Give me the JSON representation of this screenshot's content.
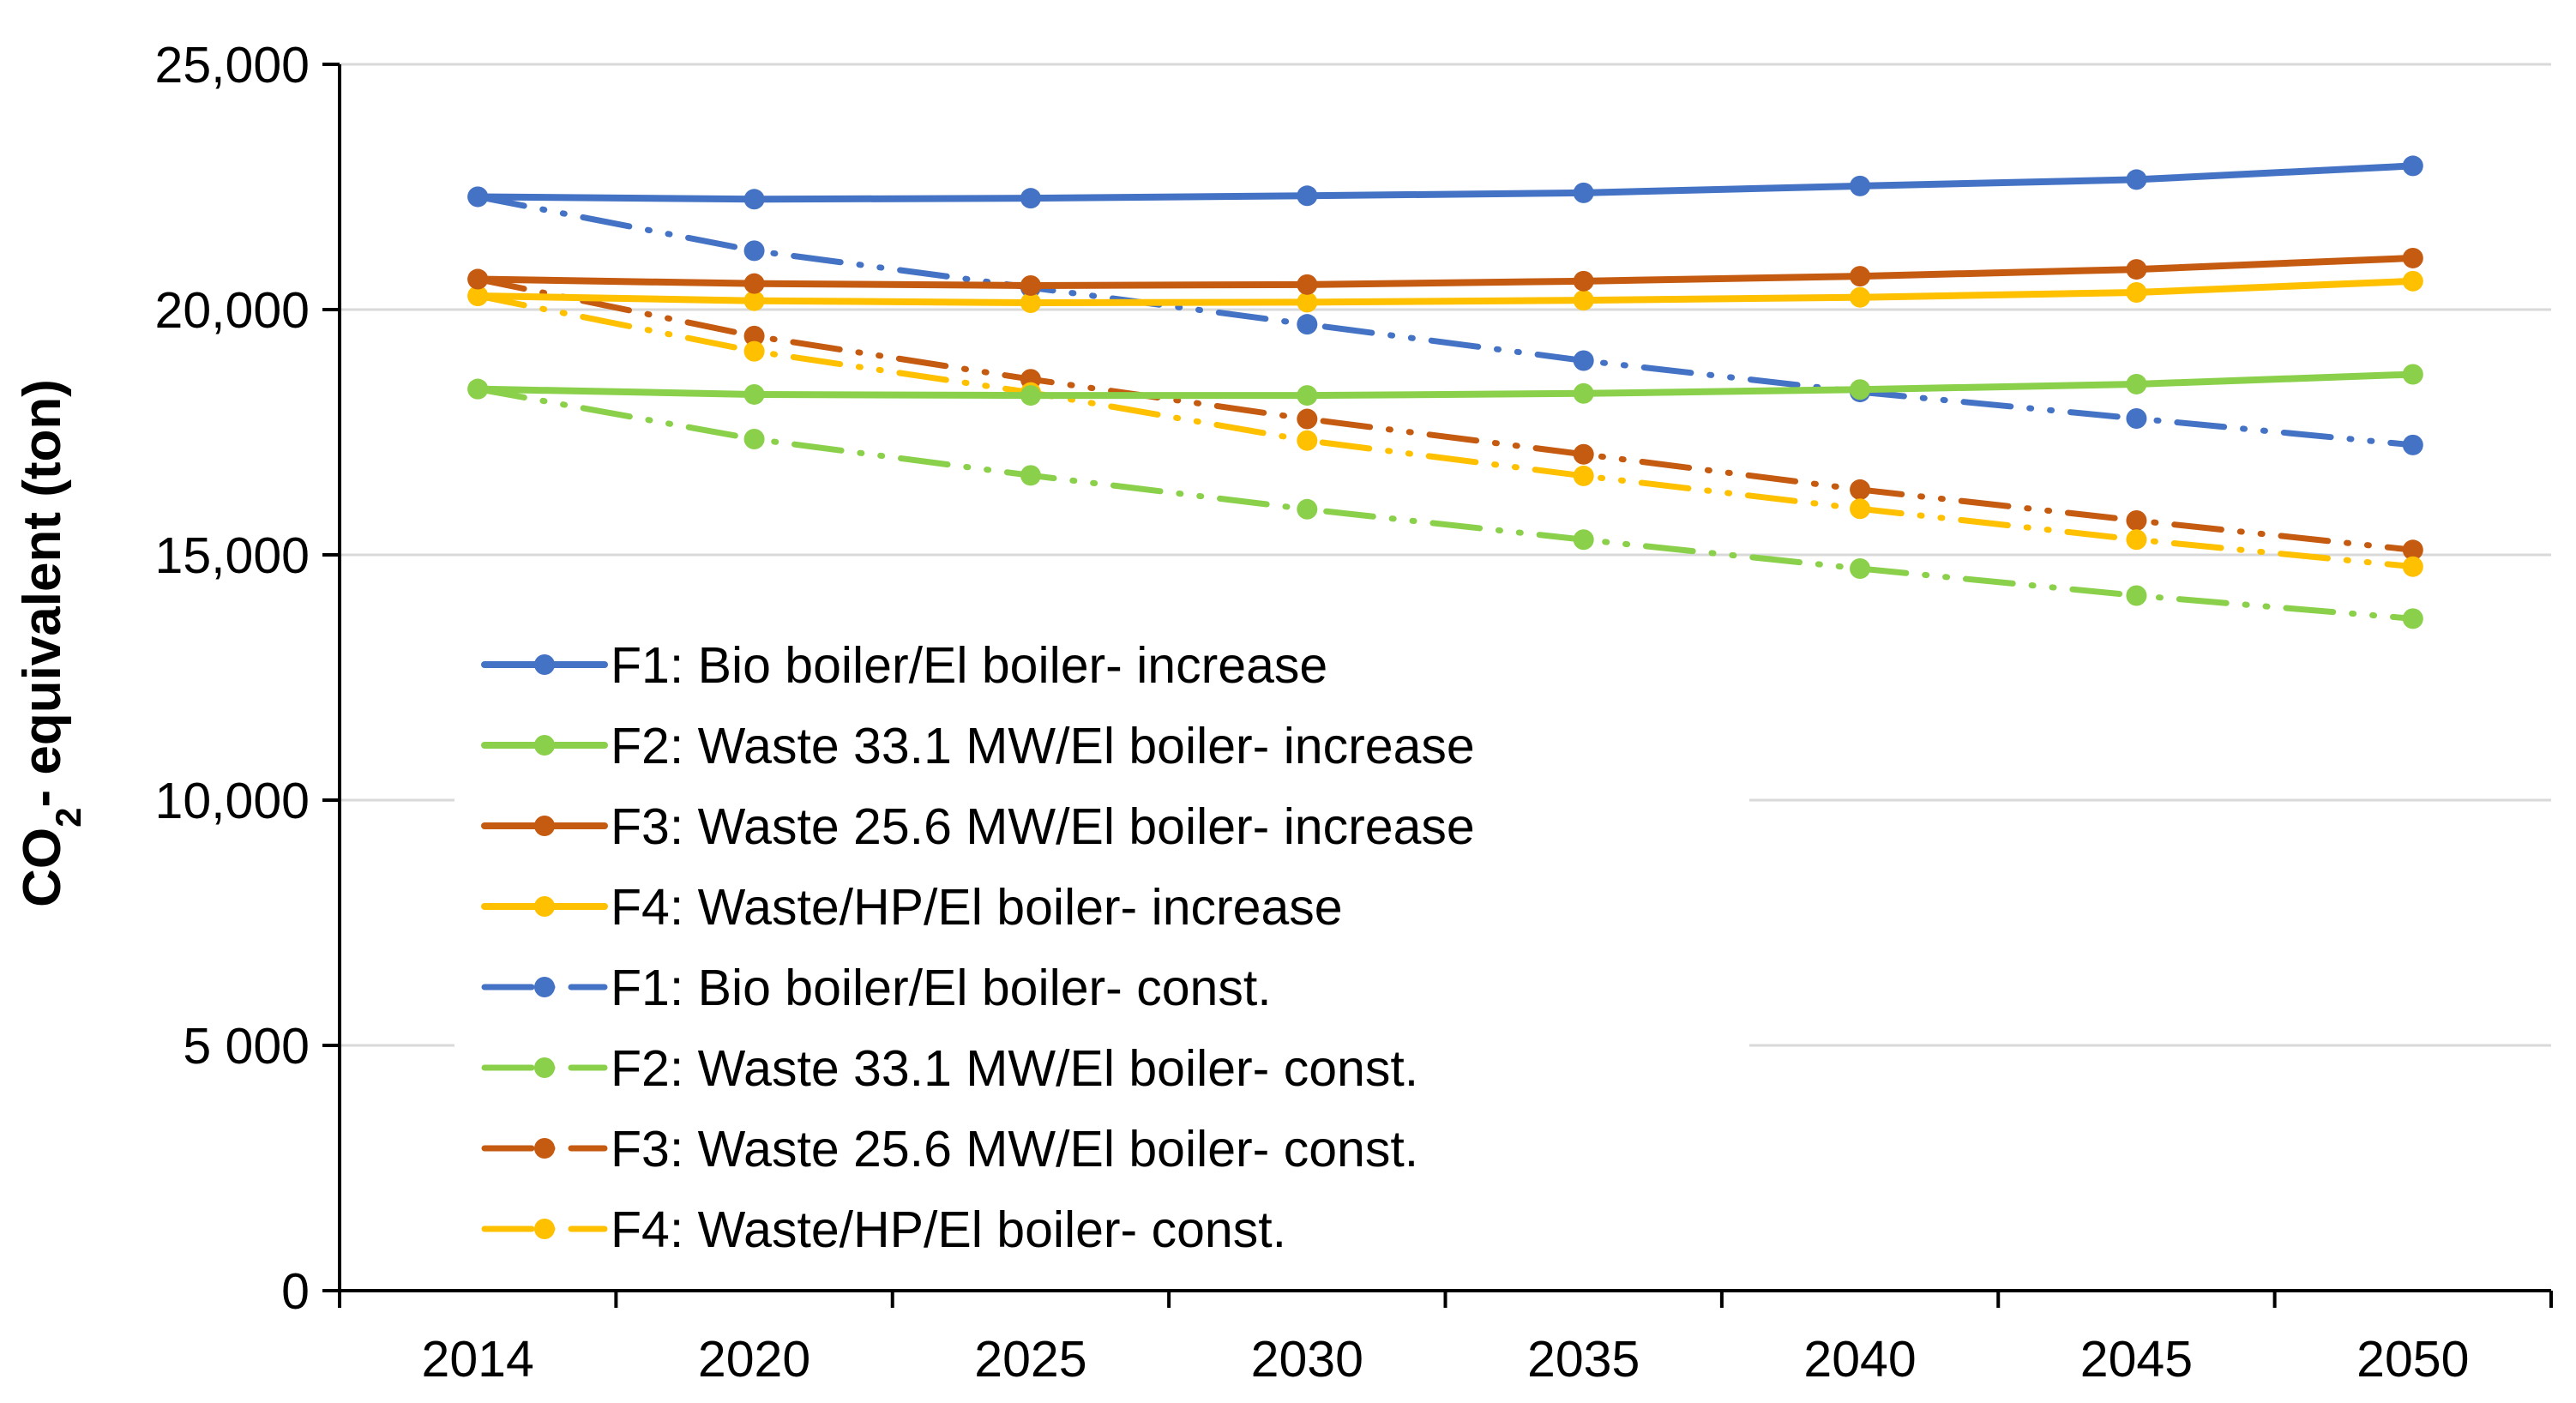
{
  "chart_data": {
    "type": "line",
    "title": "",
    "xlabel": "",
    "ylabel": {
      "prefix": "CO",
      "subscript": "2",
      "suffix": "- equivalent  (ton)"
    },
    "categories": [
      "2014",
      "2020",
      "2025",
      "2030",
      "2035",
      "2040",
      "2045",
      "2050"
    ],
    "ylim": [
      0,
      25000
    ],
    "yticks": [
      0,
      5000,
      10000,
      15000,
      20000,
      25000
    ],
    "ytick_labels": [
      "0",
      "5 000",
      "10,000",
      "15,000",
      "20,000",
      "25,000"
    ],
    "grid": true,
    "legend_position": "bottom-left",
    "series": [
      {
        "name": "F1: Bio boiler/El boiler- increase",
        "color": "#4472C4",
        "style": "solid",
        "values": [
          22300,
          22250,
          22270,
          22320,
          22380,
          22520,
          22650,
          22930
        ]
      },
      {
        "name": "F2: Waste 33.1 MW/El boiler- increase",
        "color": "#8BD04A",
        "style": "solid",
        "values": [
          18380,
          18270,
          18250,
          18250,
          18290,
          18370,
          18480,
          18680
        ]
      },
      {
        "name": "F3: Waste 25.6 MW/El boiler- increase",
        "color": "#C55A11",
        "style": "solid",
        "values": [
          20620,
          20530,
          20490,
          20510,
          20580,
          20680,
          20820,
          21050
        ]
      },
      {
        "name": "F4: Waste/HP/El boiler- increase",
        "color": "#FFC000",
        "style": "solid",
        "values": [
          20280,
          20180,
          20140,
          20150,
          20190,
          20250,
          20350,
          20580
        ]
      },
      {
        "name": "F1: Bio boiler/El boiler- const.",
        "color": "#4472C4",
        "style": "dashdot",
        "values": [
          22300,
          21200,
          20450,
          19700,
          18960,
          18320,
          17780,
          17240
        ]
      },
      {
        "name": "F2: Waste 33.1 MW/El boiler- const.",
        "color": "#8BD04A",
        "style": "dashdot",
        "values": [
          18380,
          17360,
          16620,
          15930,
          15310,
          14720,
          14170,
          13700
        ]
      },
      {
        "name": "F3: Waste 25.6 MW/El boiler- const.",
        "color": "#C55A11",
        "style": "dashdot",
        "values": [
          20620,
          19460,
          18580,
          17770,
          17050,
          16330,
          15700,
          15100
        ]
      },
      {
        "name": "F4: Waste/HP/El boiler- const.",
        "color": "#FFC000",
        "style": "dashdot",
        "values": [
          20280,
          19150,
          18310,
          17330,
          16610,
          15940,
          15310,
          14760
        ]
      }
    ]
  }
}
